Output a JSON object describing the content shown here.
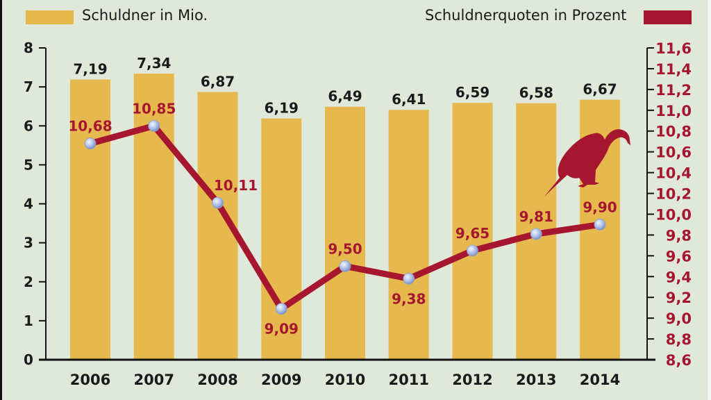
{
  "legend": {
    "left_label": "Schuldner in Mio.",
    "right_label": "Schuldnerquoten in Prozent"
  },
  "colors": {
    "background": "#dfe8d9",
    "bar": "#e6b94e",
    "line": "#a6162f",
    "marker": "#aebfe6",
    "axis_left_text": "#1a1a1a",
    "axis_right_text": "#a6162f"
  },
  "chart_data": {
    "type": "bar+line",
    "title": "",
    "categories": [
      "2006",
      "2007",
      "2008",
      "2009",
      "2010",
      "2011",
      "2012",
      "2013",
      "2014"
    ],
    "series": [
      {
        "name": "Schuldner in Mio.",
        "type": "bar",
        "axis": "left",
        "values": [
          7.19,
          7.34,
          6.87,
          6.19,
          6.49,
          6.41,
          6.59,
          6.58,
          6.67
        ],
        "labels": [
          "7,19",
          "7,34",
          "6,87",
          "6,19",
          "6,49",
          "6,41",
          "6,59",
          "6,58",
          "6,67"
        ]
      },
      {
        "name": "Schuldnerquoten in Prozent",
        "type": "line",
        "axis": "right",
        "values": [
          10.68,
          10.85,
          10.11,
          9.09,
          9.5,
          9.38,
          9.65,
          9.81,
          9.9
        ],
        "labels": [
          "10,68",
          "10,85",
          "10,11",
          "9,09",
          "9,50",
          "9,38",
          "9,65",
          "9,81",
          "9,90"
        ]
      }
    ],
    "left_axis": {
      "ylim": [
        0,
        8
      ],
      "ticks": [
        "0",
        "1",
        "2",
        "3",
        "4",
        "5",
        "6",
        "7",
        "8"
      ]
    },
    "right_axis": {
      "ylim": [
        8.6,
        11.6
      ],
      "ticks": [
        "8,6",
        "8,8",
        "9,0",
        "9,2",
        "9,4",
        "9,6",
        "9,8",
        "10,0",
        "10,2",
        "10,4",
        "10,6",
        "10,8",
        "11,0",
        "11,2",
        "11,4",
        "11,6"
      ]
    },
    "xlabel": "",
    "ylabel": "",
    "grid": false,
    "legend_position": "top",
    "annotations": [
      "vulture silhouette illustration"
    ]
  }
}
